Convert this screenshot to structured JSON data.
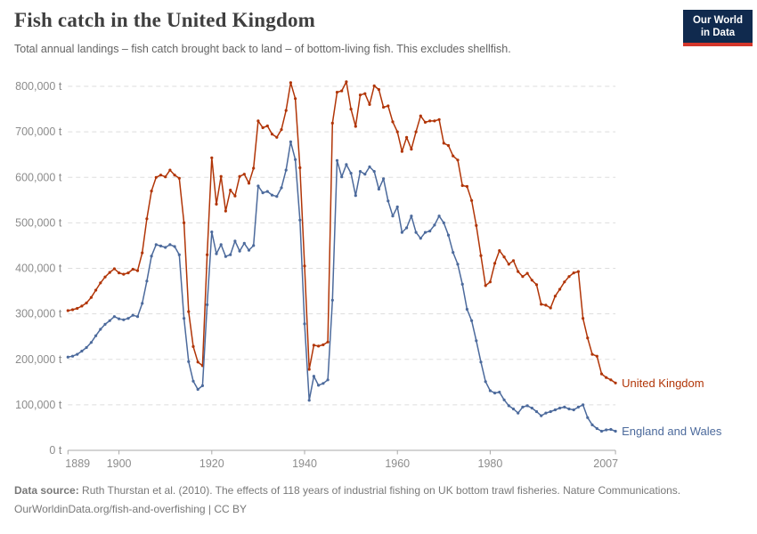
{
  "header": {
    "title": "Fish catch in the United Kingdom",
    "subtitle": "Total annual landings – fish catch brought back to land – of bottom-living fish. This excludes shellfish."
  },
  "logo": {
    "line1": "Our World",
    "line2": "in Data",
    "bg_color": "#102A4E",
    "bar_color": "#D4362B"
  },
  "footer": {
    "source_label": "Data source:",
    "source_text": " Ruth Thurstan et al. (2010). The effects of 118 years of industrial fishing on UK bottom trawl fisheries. Nature Communications.",
    "link_text": "OurWorldinData.org/fish-and-overfishing",
    "divider": " | ",
    "license": "CC BY"
  },
  "chart_data": {
    "type": "line",
    "title": "Fish catch in the United Kingdom",
    "unit": "tonnes",
    "value_scale": 1000,
    "grid": true,
    "legend_position": "end-of-line",
    "xlim": [
      1889,
      2007
    ],
    "ylim": [
      0,
      800000
    ],
    "x_axis": {
      "ticks": [
        {
          "year": 1889,
          "label": "1889"
        },
        {
          "year": 1900,
          "label": "1900"
        },
        {
          "year": 1920,
          "label": "1920"
        },
        {
          "year": 1940,
          "label": "1940"
        },
        {
          "year": 1960,
          "label": "1960"
        },
        {
          "year": 1980,
          "label": "1980"
        },
        {
          "year": 2007,
          "label": "2007"
        }
      ]
    },
    "y_axis": {
      "ticks": [
        {
          "value": 0,
          "label": "0 t"
        },
        {
          "value": 100000,
          "label": "100,000 t"
        },
        {
          "value": 200000,
          "label": "200,000 t"
        },
        {
          "value": 300000,
          "label": "300,000 t"
        },
        {
          "value": 400000,
          "label": "400,000 t"
        },
        {
          "value": 500000,
          "label": "500,000 t"
        },
        {
          "value": 600000,
          "label": "600,000 t"
        },
        {
          "value": 700000,
          "label": "700,000 t"
        },
        {
          "value": 800000,
          "label": "800,000 t"
        }
      ]
    },
    "years": [
      1889,
      1890,
      1891,
      1892,
      1893,
      1894,
      1895,
      1896,
      1897,
      1898,
      1899,
      1900,
      1901,
      1902,
      1903,
      1904,
      1905,
      1906,
      1907,
      1908,
      1909,
      1910,
      1911,
      1912,
      1913,
      1914,
      1915,
      1916,
      1917,
      1918,
      1919,
      1920,
      1921,
      1922,
      1923,
      1924,
      1925,
      1926,
      1927,
      1928,
      1929,
      1930,
      1931,
      1932,
      1933,
      1934,
      1935,
      1936,
      1937,
      1938,
      1939,
      1940,
      1941,
      1942,
      1943,
      1944,
      1945,
      1946,
      1947,
      1948,
      1949,
      1950,
      1951,
      1952,
      1953,
      1954,
      1955,
      1956,
      1957,
      1958,
      1959,
      1960,
      1961,
      1962,
      1963,
      1964,
      1965,
      1966,
      1967,
      1968,
      1969,
      1970,
      1971,
      1972,
      1973,
      1974,
      1975,
      1976,
      1977,
      1978,
      1979,
      1980,
      1981,
      1982,
      1983,
      1984,
      1985,
      1986,
      1987,
      1988,
      1989,
      1990,
      1991,
      1992,
      1993,
      1994,
      1995,
      1996,
      1997,
      1998,
      1999,
      2000,
      2001,
      2002,
      2003,
      2004,
      2005,
      2006,
      2007
    ],
    "series": [
      {
        "name": "United Kingdom",
        "color": "#B13507",
        "values": [
          307,
          309,
          312,
          317,
          324,
          336,
          352,
          368,
          381,
          391,
          399,
          390,
          387,
          390,
          398,
          395,
          434,
          509,
          570,
          600,
          605,
          601,
          616,
          605,
          598,
          500,
          305,
          228,
          194,
          186,
          430,
          643,
          541,
          602,
          526,
          572,
          559,
          602,
          607,
          587,
          620,
          724,
          709,
          713,
          695,
          688,
          705,
          747,
          808,
          773,
          621,
          405,
          178,
          231,
          229,
          232,
          238,
          719,
          787,
          790,
          810,
          750,
          712,
          781,
          784,
          760,
          801,
          793,
          754,
          757,
          722,
          700,
          657,
          688,
          662,
          700,
          735,
          721,
          724,
          724,
          727,
          675,
          670,
          647,
          638,
          582,
          580,
          549,
          494,
          428,
          362,
          370,
          411,
          439,
          425,
          409,
          417,
          393,
          382,
          389,
          374,
          364,
          321,
          319,
          313,
          339,
          354,
          370,
          382,
          390,
          393,
          290,
          247,
          211,
          207,
          168,
          160,
          155,
          148
        ]
      },
      {
        "name": "England and Wales",
        "color": "#4C6A9C",
        "values": [
          205,
          207,
          211,
          218,
          226,
          237,
          252,
          266,
          277,
          285,
          294,
          289,
          287,
          290,
          297,
          294,
          323,
          372,
          427,
          452,
          449,
          446,
          452,
          448,
          430,
          290,
          195,
          152,
          134,
          142,
          320,
          480,
          432,
          452,
          426,
          430,
          460,
          438,
          455,
          440,
          450,
          581,
          566,
          569,
          561,
          558,
          577,
          616,
          678,
          639,
          506,
          278,
          110,
          163,
          143,
          147,
          155,
          330,
          637,
          601,
          628,
          609,
          560,
          613,
          607,
          623,
          613,
          574,
          597,
          548,
          515,
          535,
          479,
          489,
          515,
          479,
          466,
          479,
          482,
          495,
          515,
          500,
          473,
          435,
          409,
          365,
          310,
          285,
          241,
          194,
          151,
          131,
          126,
          128,
          111,
          98,
          91,
          82,
          95,
          98,
          93,
          85,
          76,
          82,
          85,
          89,
          93,
          95,
          91,
          89,
          95,
          100,
          72,
          56,
          48,
          42,
          45,
          46,
          42
        ]
      }
    ]
  }
}
